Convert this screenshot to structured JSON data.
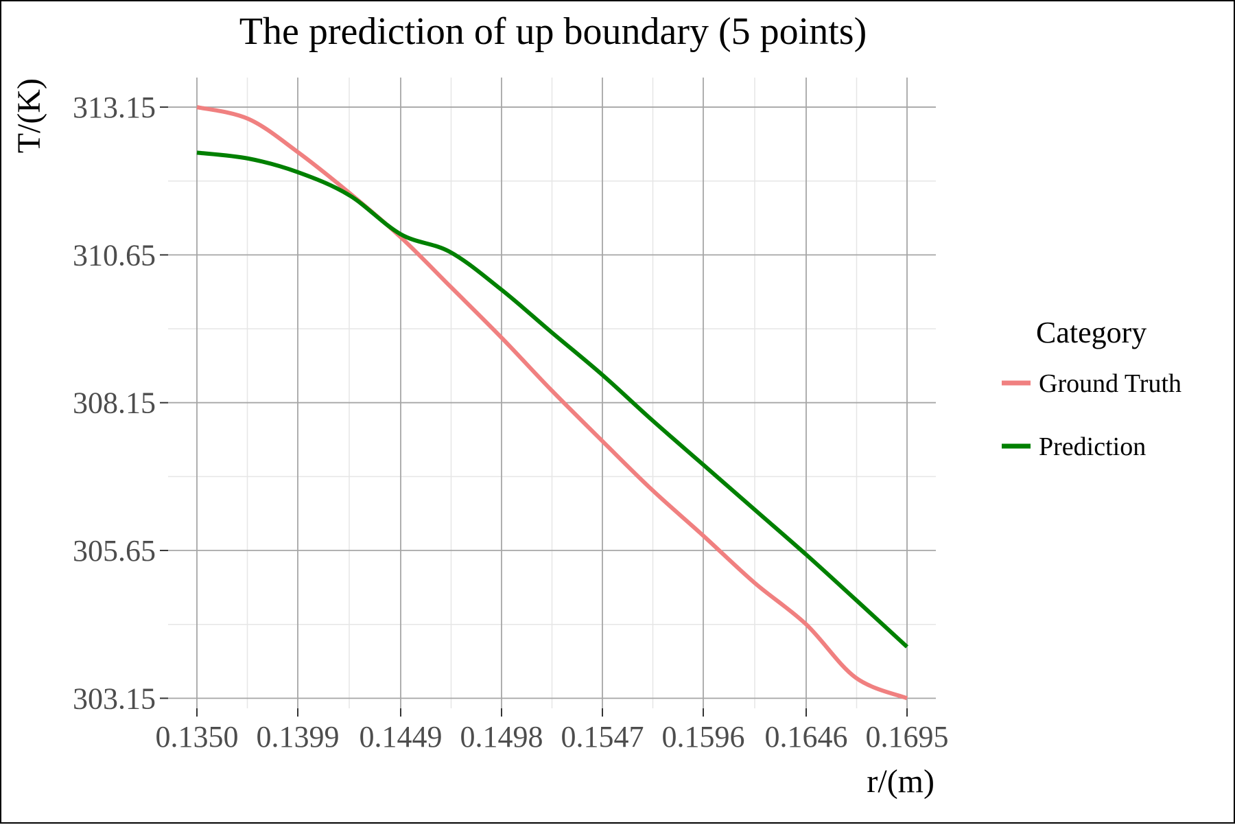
{
  "chart_data": {
    "type": "line",
    "title": "The prediction of up boundary (5 points)",
    "xlabel": "r/(m)",
    "ylabel": "T/(K)",
    "xlim": [
      0.1336,
      0.1709
    ],
    "ylim": [
      302.98,
      313.65
    ],
    "x_ticks": [
      0.135,
      0.1399,
      0.1449,
      0.1498,
      0.1547,
      0.1596,
      0.1646,
      0.1695
    ],
    "x_tick_labels": [
      "0.1350",
      "0.1399",
      "0.1449",
      "0.1498",
      "0.1547",
      "0.1596",
      "0.1646",
      "0.1695"
    ],
    "y_ticks": [
      303.15,
      305.65,
      308.15,
      310.65,
      313.15
    ],
    "y_tick_labels": [
      "303.15",
      "305.65",
      "308.15",
      "310.65",
      "313.15"
    ],
    "grid": true,
    "legend": {
      "title": "Category",
      "placement": "right"
    },
    "series": [
      {
        "name": "Ground Truth",
        "color": "#f08080",
        "x": [
          0.135,
          0.1375,
          0.1399,
          0.1424,
          0.1449,
          0.1473,
          0.1498,
          0.1522,
          0.1547,
          0.1571,
          0.1596,
          0.1621,
          0.1646,
          0.167,
          0.1695
        ],
        "y": [
          313.15,
          312.95,
          312.39,
          311.7,
          310.95,
          310.12,
          309.25,
          308.37,
          307.5,
          306.68,
          305.9,
          305.1,
          304.4,
          303.5,
          303.15
        ]
      },
      {
        "name": "Prediction",
        "color": "#008000",
        "x": [
          0.135,
          0.1375,
          0.1399,
          0.1424,
          0.1449,
          0.1473,
          0.1498,
          0.1522,
          0.1547,
          0.1571,
          0.1596,
          0.1621,
          0.1646,
          0.167,
          0.1695
        ],
        "y": [
          312.38,
          312.28,
          312.05,
          311.66,
          311.0,
          310.7,
          310.06,
          309.35,
          308.62,
          307.86,
          307.1,
          306.34,
          305.58,
          304.82,
          304.02
        ]
      }
    ]
  }
}
